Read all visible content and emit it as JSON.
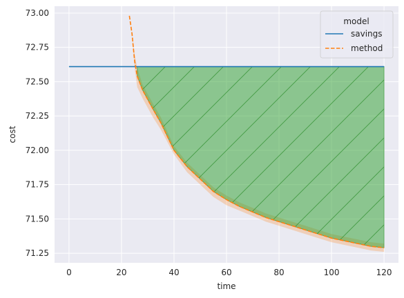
{
  "chart_data": {
    "type": "line",
    "xlabel": "time",
    "ylabel": "cost",
    "xlim": [
      -5.5,
      125.5
    ],
    "ylim": [
      71.18,
      73.05
    ],
    "x_ticks": [
      0,
      20,
      40,
      60,
      80,
      100,
      120
    ],
    "y_ticks": [
      71.25,
      71.5,
      71.75,
      72.0,
      72.25,
      72.5,
      72.75,
      73.0
    ],
    "x_tick_labels": [
      "0",
      "20",
      "40",
      "60",
      "80",
      "100",
      "120"
    ],
    "y_tick_labels": [
      "71.25",
      "71.50",
      "71.75",
      "72.00",
      "72.25",
      "72.50",
      "72.75",
      "73.00"
    ],
    "grid": true,
    "legend": {
      "title": "model",
      "placement": "upper right",
      "entries": [
        {
          "name": "savings",
          "style": "solid",
          "color": "#1f77b4"
        },
        {
          "name": "method",
          "style": "dashed",
          "color": "#ff7f0e"
        }
      ]
    },
    "series": [
      {
        "name": "savings",
        "style": "solid",
        "color": "#1f77b4",
        "x": [
          0,
          120
        ],
        "values": [
          72.61,
          72.61
        ]
      },
      {
        "name": "method",
        "style": "dashed",
        "color": "#ff7f0e",
        "x": [
          23,
          24,
          25,
          26,
          28,
          30,
          32,
          35,
          40,
          45,
          50,
          55,
          60,
          65,
          70,
          75,
          80,
          85,
          90,
          95,
          100,
          105,
          110,
          115,
          120
        ],
        "values": [
          72.98,
          72.85,
          72.65,
          72.54,
          72.44,
          72.37,
          72.3,
          72.2,
          72.0,
          71.88,
          71.79,
          71.7,
          71.64,
          71.59,
          71.55,
          71.51,
          71.48,
          71.45,
          71.42,
          71.39,
          71.36,
          71.34,
          71.32,
          71.3,
          71.29
        ],
        "band_lower": [
          72.98,
          72.85,
          72.6,
          72.46,
          72.38,
          72.31,
          72.24,
          72.15,
          71.97,
          71.84,
          71.75,
          71.66,
          71.6,
          71.56,
          71.52,
          71.48,
          71.45,
          71.42,
          71.39,
          71.36,
          71.33,
          71.31,
          71.29,
          71.27,
          71.26
        ],
        "band_upper": [
          72.98,
          72.85,
          72.7,
          72.6,
          72.48,
          72.41,
          72.34,
          72.24,
          72.03,
          71.91,
          71.82,
          71.73,
          71.67,
          71.62,
          71.58,
          71.54,
          71.51,
          71.48,
          71.45,
          71.42,
          71.39,
          71.37,
          71.35,
          71.33,
          71.32
        ]
      }
    ],
    "fill_between": {
      "between": [
        "savings",
        "method"
      ],
      "x_start": 26,
      "x_end": 120,
      "color": "#2ca02c",
      "hatch": "diagonal"
    }
  }
}
